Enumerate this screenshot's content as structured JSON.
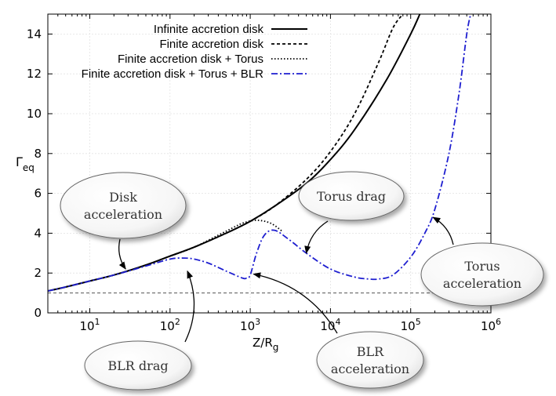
{
  "chart_data": {
    "type": "line",
    "xscale": "log",
    "xlim": [
      3,
      1000000
    ],
    "ylim": [
      0,
      15
    ],
    "xlabel": "Z/R",
    "xlabel_sub": "g",
    "ylabel": "Γ",
    "ylabel_sub": "eq",
    "grid": true,
    "legend_position": "top-right",
    "x_ticks": [
      {
        "value": 10,
        "base": "10",
        "exp": "1"
      },
      {
        "value": 100,
        "base": "10",
        "exp": "2"
      },
      {
        "value": 1000,
        "base": "10",
        "exp": "3"
      },
      {
        "value": 10000,
        "base": "10",
        "exp": "4"
      },
      {
        "value": 100000,
        "base": "10",
        "exp": "5"
      },
      {
        "value": 1000000,
        "base": "10",
        "exp": "6"
      }
    ],
    "y_ticks": [
      {
        "value": 0,
        "label": "0"
      },
      {
        "value": 2,
        "label": "2"
      },
      {
        "value": 4,
        "label": "4"
      },
      {
        "value": 6,
        "label": "6"
      },
      {
        "value": 8,
        "label": "8"
      },
      {
        "value": 10,
        "label": "10"
      },
      {
        "value": 12,
        "label": "12"
      },
      {
        "value": 14,
        "label": "14"
      }
    ],
    "reference_line": {
      "y": 1,
      "color": "#555555",
      "style": "dashed"
    },
    "series": [
      {
        "name": "Infinite accretion disk",
        "color": "#000000",
        "style": "solid",
        "x": [
          3,
          5,
          10,
          20,
          50,
          100,
          200,
          500,
          1000,
          2000,
          5000,
          10000,
          20000,
          50000,
          100000,
          130000
        ],
        "y": [
          1.1,
          1.3,
          1.6,
          1.9,
          2.4,
          2.85,
          3.3,
          4.0,
          4.6,
          5.35,
          6.5,
          7.7,
          9.2,
          11.7,
          14.0,
          15.0
        ]
      },
      {
        "name": "Finite accretion disk",
        "color": "#000000",
        "style": "dashed",
        "x": [
          3,
          5,
          10,
          20,
          50,
          100,
          200,
          500,
          1000,
          2000,
          5000,
          10000,
          20000,
          40000,
          60000,
          80000
        ],
        "y": [
          1.1,
          1.3,
          1.6,
          1.9,
          2.4,
          2.85,
          3.3,
          4.0,
          4.6,
          5.35,
          6.7,
          8.1,
          10.0,
          12.6,
          14.3,
          15.0
        ]
      },
      {
        "name": "Finite accretion disk + Torus",
        "color": "#000000",
        "style": "dotted",
        "x": [
          3,
          5,
          10,
          20,
          50,
          100,
          200,
          500,
          800,
          1200,
          1800,
          2500
        ],
        "y": [
          1.1,
          1.3,
          1.6,
          1.9,
          2.4,
          2.85,
          3.3,
          4.1,
          4.5,
          4.65,
          4.5,
          4.1
        ]
      },
      {
        "name": "Finite accretion disk + Torus + BLR",
        "color": "#1f1fd0",
        "style": "dashdot",
        "x": [
          3,
          5,
          10,
          20,
          50,
          100,
          150,
          200,
          300,
          500,
          800,
          900,
          1000,
          1200,
          1500,
          2000,
          3000,
          5000,
          10000,
          20000,
          30000,
          40000,
          60000,
          100000,
          150000,
          200000,
          300000,
          400000,
          500000,
          560000
        ],
        "y": [
          1.1,
          1.3,
          1.6,
          1.9,
          2.35,
          2.7,
          2.75,
          2.7,
          2.5,
          2.1,
          1.75,
          1.75,
          1.9,
          3.0,
          3.9,
          4.15,
          3.7,
          3.0,
          2.2,
          1.8,
          1.7,
          1.7,
          1.9,
          2.8,
          4.0,
          5.2,
          8.0,
          11.0,
          14.0,
          15.0
        ]
      }
    ],
    "annotations": [
      {
        "lines": [
          "Disk",
          "acceleration"
        ],
        "target": {
          "x": 28,
          "y": 2.2
        }
      },
      {
        "lines": [
          "Torus drag"
        ],
        "target": {
          "x": 5000,
          "y": 3.0
        }
      },
      {
        "lines": [
          "BLR drag"
        ],
        "target": {
          "x": 165,
          "y": 2.1
        }
      },
      {
        "lines": [
          "BLR",
          "acceleration"
        ],
        "target": {
          "x": 1100,
          "y": 1.95
        }
      },
      {
        "lines": [
          "Torus",
          "acceleration"
        ],
        "target": {
          "x": 190000,
          "y": 4.8
        }
      }
    ]
  }
}
